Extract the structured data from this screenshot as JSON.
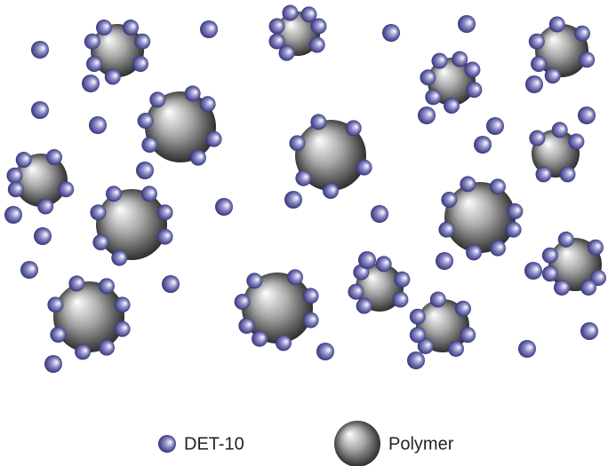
{
  "legend": {
    "items": [
      {
        "label": "DET-10"
      },
      {
        "label": "Polymer"
      }
    ]
  }
}
